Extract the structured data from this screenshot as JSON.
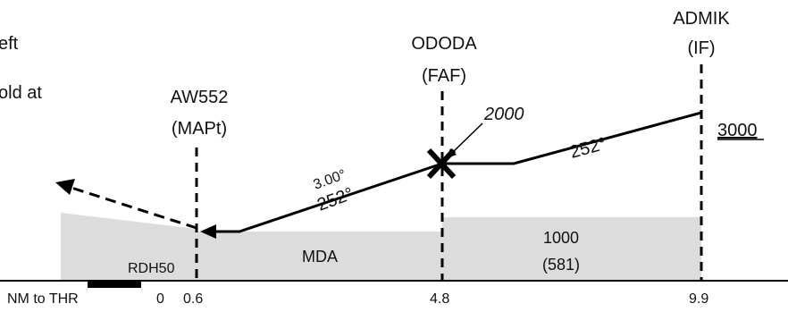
{
  "fixes": {
    "admik": {
      "name": "ADMIK",
      "role": "(IF)"
    },
    "ododa": {
      "name": "ODODA",
      "role": "(FAF)"
    },
    "aw552": {
      "name": "AW552",
      "role": "(MAPt)"
    }
  },
  "missed_text": {
    "line1": "eft",
    "line2": "old at"
  },
  "altitudes": {
    "faf_alt": "2000",
    "if_alt": "3000",
    "mda": "MDA",
    "minimum": "1000",
    "minimum_agl": "(581)",
    "rdh": "RDH50"
  },
  "path": {
    "angle_label": "3.00°",
    "course_final": "252°",
    "course_intermediate": "252°"
  },
  "distances": {
    "axis_label": "NM to THR",
    "zero": "0",
    "mapt": "0.6",
    "faf": "4.8",
    "if": "9.9"
  },
  "colors": {
    "obstacle_fill": "#dcdcdc",
    "line": "#000000"
  }
}
